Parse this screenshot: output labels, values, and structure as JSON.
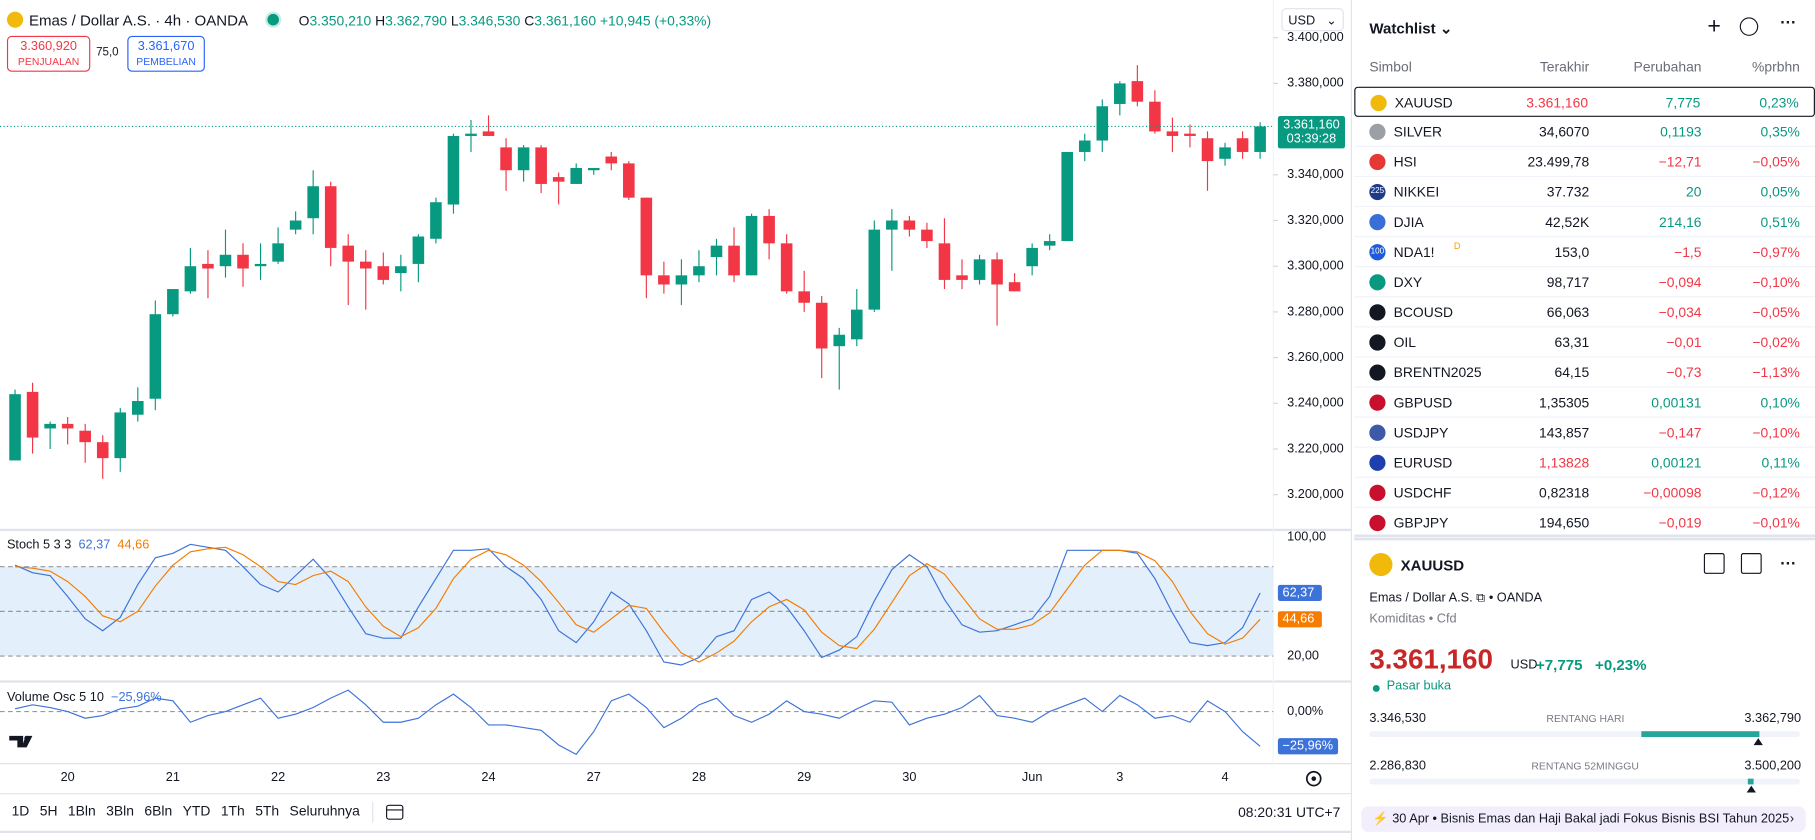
{
  "header": {
    "symbol_title": "Emas / Dollar A.S. · 4h · OANDA",
    "o_label": "O",
    "o": "3.350,210",
    "h_label": "H",
    "h": "3.362,790",
    "l_label": "L",
    "l": "3.346,530",
    "c_label": "C",
    "c": "3.361,160",
    "change": "+10,945 (+0,33%)"
  },
  "trade": {
    "sell": "3.360,920",
    "sell_label": "PENJUALAN",
    "spread": "75,0",
    "buy": "3.361,670",
    "buy_label": "PEMBELIAN",
    "currency": "USD"
  },
  "chart_data": [
    {
      "type": "candlestick",
      "up_color": "#089981",
      "down_color": "#f23645",
      "open": [
        3215,
        3245,
        3229,
        3231,
        3228,
        3223,
        3216,
        3235,
        3242,
        3279,
        3289,
        3301,
        3300,
        3305,
        3300,
        3302,
        3316,
        3321,
        3335,
        3309,
        3302,
        3300,
        3297,
        3301,
        3312,
        3327,
        3357,
        3359,
        3352,
        3342,
        3352,
        3339,
        3336,
        3342,
        3348,
        3345,
        3330,
        3296,
        3292,
        3296,
        3304,
        3309,
        3296,
        3322,
        3310,
        3289,
        3284,
        3265,
        3268,
        3281,
        3316,
        3320,
        3316,
        3310,
        3296,
        3294,
        3303,
        3293,
        3300,
        3309,
        3311,
        3350,
        3355,
        3371,
        3381,
        3372,
        3359,
        3358,
        3356,
        3347,
        3356,
        3350
      ],
      "high": [
        3246,
        3249,
        3232,
        3234,
        3231,
        3226,
        3238,
        3247,
        3285,
        3290,
        3308,
        3307,
        3316,
        3310,
        3310,
        3317,
        3324,
        3342,
        3337,
        3314,
        3307,
        3306,
        3305,
        3314,
        3330,
        3358,
        3364,
        3366,
        3356,
        3353,
        3353,
        3341,
        3345,
        3343,
        3350,
        3346,
        3330,
        3302,
        3303,
        3307,
        3312,
        3317,
        3323,
        3325,
        3314,
        3298,
        3287,
        3273,
        3290,
        3320,
        3325,
        3322,
        3319,
        3321,
        3303,
        3305,
        3306,
        3297,
        3310,
        3314,
        3350,
        3358,
        3373,
        3381,
        3388,
        3377,
        3365,
        3362,
        3359,
        3354,
        3359,
        3363
      ],
      "low": [
        3215,
        3218,
        3220,
        3222,
        3214,
        3207,
        3210,
        3232,
        3237,
        3278,
        3288,
        3286,
        3295,
        3291,
        3294,
        3301,
        3314,
        3314,
        3300,
        3283,
        3281,
        3292,
        3289,
        3293,
        3310,
        3323,
        3350,
        3357,
        3333,
        3337,
        3332,
        3327,
        3336,
        3340,
        3342,
        3329,
        3286,
        3288,
        3283,
        3293,
        3296,
        3293,
        3296,
        3303,
        3288,
        3280,
        3251,
        3246,
        3265,
        3280,
        3298,
        3313,
        3308,
        3290,
        3290,
        3292,
        3274,
        3289,
        3296,
        3307,
        3311,
        3346,
        3350,
        3366,
        3370,
        3358,
        3350,
        3352,
        3333,
        3344,
        3347,
        3347
      ],
      "close": [
        3244,
        3225,
        3231,
        3229,
        3223,
        3216,
        3236,
        3241,
        3279,
        3290,
        3300,
        3299,
        3305,
        3299,
        3301,
        3310,
        3320,
        3335,
        3308,
        3302,
        3299,
        3294,
        3300,
        3313,
        3328,
        3357,
        3358,
        3357,
        3342,
        3352,
        3336,
        3337,
        3343,
        3343,
        3345,
        3330,
        3296,
        3292,
        3296,
        3300,
        3309,
        3296,
        3322,
        3310,
        3289,
        3284,
        3264,
        3270,
        3281,
        3316,
        3320,
        3316,
        3311,
        3294,
        3294,
        3303,
        3292,
        3289,
        3308,
        3311,
        3350,
        3355,
        3370,
        3380,
        3372,
        3359,
        3357,
        3357,
        3346,
        3352,
        3350,
        3361.16
      ],
      "last_price_label": "3.361,160",
      "countdown": "03:39:28",
      "ylim": [
        3185.1,
        3416.5
      ],
      "yticks": [
        {
          "value": 3200,
          "label": "3.200,000"
        },
        {
          "value": 3220,
          "label": "3.220,000"
        },
        {
          "value": 3240,
          "label": "3.240,000"
        },
        {
          "value": 3260,
          "label": "3.260,000"
        },
        {
          "value": 3280,
          "label": "3.280,000"
        },
        {
          "value": 3300,
          "label": "3.300,000"
        },
        {
          "value": 3320,
          "label": "3.320,000"
        },
        {
          "value": 3340,
          "label": "3.340,000"
        },
        {
          "value": 3380,
          "label": "3.380,000"
        },
        {
          "value": 3400,
          "label": "3.400,000"
        }
      ],
      "xticks": [
        {
          "value": 3,
          "label": "20"
        },
        {
          "value": 9,
          "label": "21"
        },
        {
          "value": 15,
          "label": "22"
        },
        {
          "value": 21,
          "label": "23"
        },
        {
          "value": 27,
          "label": "24"
        },
        {
          "value": 33,
          "label": "27"
        },
        {
          "value": 39,
          "label": "28"
        },
        {
          "value": 45,
          "label": "29"
        },
        {
          "value": 51,
          "label": "30"
        },
        {
          "value": 58,
          "label": "Jun"
        },
        {
          "value": 63,
          "label": "3"
        },
        {
          "value": 69,
          "label": "4"
        }
      ]
    },
    {
      "type": "line",
      "title": "Stoch 5 3 3",
      "ylim": [
        3.7,
        104.7
      ],
      "yticks": [
        {
          "value": 100,
          "label": "100,00"
        },
        {
          "value": 20,
          "label": "20,00"
        }
      ],
      "levels": [
        80,
        50,
        20
      ],
      "band_color": "#e3f0fb",
      "series": [
        {
          "color": "#3d73d9",
          "last_label": "62,37",
          "values": [
            81,
            76,
            74,
            60,
            45,
            37,
            46,
            68,
            86,
            89,
            95,
            93,
            91,
            80,
            68,
            63,
            74,
            85,
            72,
            53,
            35,
            32,
            32,
            53,
            72,
            91,
            91,
            92,
            80,
            72,
            58,
            37,
            29,
            43,
            63,
            55,
            37,
            16,
            14,
            19,
            33,
            37,
            58,
            63,
            53,
            37,
            19,
            24,
            33,
            57,
            78,
            88,
            80,
            58,
            41,
            36,
            37,
            41,
            45,
            60,
            91,
            91,
            91,
            91,
            89,
            72,
            49,
            29,
            27,
            29,
            39,
            62.37
          ]
        },
        {
          "color": "#f57c00",
          "last_label": "44,66",
          "values": [
            80,
            79,
            77,
            70,
            60,
            47,
            43,
            50,
            67,
            81,
            90,
            92,
            93,
            88,
            80,
            70,
            68,
            74,
            77,
            70,
            53,
            40,
            33,
            39,
            52,
            72,
            85,
            91,
            88,
            81,
            70,
            56,
            41,
            36,
            45,
            54,
            52,
            36,
            22,
            16,
            22,
            30,
            43,
            53,
            58,
            51,
            36,
            27,
            25,
            38,
            56,
            74,
            82,
            75,
            60,
            45,
            38,
            38,
            41,
            49,
            65,
            81,
            91,
            91,
            90,
            84,
            70,
            50,
            35,
            28,
            32,
            44.66
          ]
        }
      ]
    },
    {
      "type": "line",
      "title": "Volume Osc 5 10",
      "ylim": [
        -37.2,
        21.6
      ],
      "yticks": [
        {
          "value": 0,
          "label": "0,00%"
        }
      ],
      "series": [
        {
          "color": "#3d73d9",
          "last_label": "−25,96%",
          "values": [
            2,
            5,
            3,
            0,
            -5,
            -3,
            2,
            4,
            10,
            8,
            -8,
            -3,
            0,
            5,
            10,
            -5,
            -2,
            3,
            10,
            16,
            5,
            -8,
            -8,
            -5,
            5,
            13,
            3,
            -10,
            -10,
            -12,
            -14,
            -25,
            -32,
            -15,
            8,
            13,
            3,
            -12,
            -5,
            5,
            10,
            -3,
            -8,
            -2,
            8,
            0,
            -2,
            -5,
            2,
            8,
            7,
            -10,
            -5,
            -2,
            3,
            12,
            -3,
            -5,
            -8,
            0,
            5,
            10,
            0,
            12,
            5,
            -5,
            -3,
            -8,
            8,
            0,
            -15,
            -25.96
          ]
        }
      ]
    }
  ],
  "toolbar": {
    "ranges": [
      "1D",
      "5H",
      "1Bln",
      "3Bln",
      "6Bln",
      "YTD",
      "1Th",
      "5Th",
      "Seluruhnya"
    ],
    "clock": "08:20:31 UTC+7"
  },
  "watchlist": {
    "title": "Watchlist",
    "columns": [
      "Simbol",
      "Terakhir",
      "Perubahan",
      "%prbhn"
    ],
    "rows": [
      {
        "symbol": "XAUUSD",
        "last": "3.361,160",
        "change": "7,775",
        "pct": "0,23%",
        "icon_color": "#f0b90b",
        "last_color": "#f23645",
        "color": "#089981"
      },
      {
        "symbol": "SILVER",
        "last": "34,6070",
        "change": "0,1193",
        "pct": "0,35%",
        "icon_color": "#9aa0a6",
        "last_color": "#131722",
        "color": "#089981"
      },
      {
        "symbol": "HSI",
        "last": "23.499,78",
        "change": "−12,71",
        "pct": "−0,05%",
        "icon_color": "#e53935",
        "last_color": "#131722",
        "color": "#f23645"
      },
      {
        "symbol": "NIKKEI",
        "last": "37.732",
        "change": "20",
        "pct": "0,05%",
        "icon_color": "#1e3a8a",
        "icon_text": "225",
        "last_color": "#131722",
        "color": "#089981"
      },
      {
        "symbol": "DJIA",
        "last": "42,52K",
        "change": "214,16",
        "pct": "0,51%",
        "icon_color": "#3b6fd8",
        "last_color": "#131722",
        "color": "#089981"
      },
      {
        "symbol": "NDA1!",
        "badge": "D",
        "last": "153,0",
        "change": "−1,5",
        "pct": "−0,97%",
        "icon_color": "#1e5bd8",
        "icon_text": "100",
        "last_color": "#131722",
        "color": "#f23645"
      },
      {
        "symbol": "DXY",
        "last": "98,717",
        "change": "−0,094",
        "pct": "−0,10%",
        "icon_color": "#089981",
        "last_color": "#131722",
        "color": "#f23645"
      },
      {
        "symbol": "BCOUSD",
        "last": "66,063",
        "change": "−0,034",
        "pct": "−0,05%",
        "icon_color": "#131722",
        "last_color": "#131722",
        "color": "#f23645"
      },
      {
        "symbol": "OIL",
        "last": "63,31",
        "change": "−0,01",
        "pct": "−0,02%",
        "icon_color": "#131722",
        "last_color": "#131722",
        "color": "#f23645"
      },
      {
        "symbol": "BRENTN2025",
        "last": "64,15",
        "change": "−0,73",
        "pct": "−1,13%",
        "icon_color": "#131722",
        "last_color": "#131722",
        "color": "#f23645"
      },
      {
        "symbol": "GBPUSD",
        "last": "1,35305",
        "change": "0,00131",
        "pct": "0,10%",
        "icon_color": "#c8102e",
        "last_color": "#131722",
        "color": "#089981"
      },
      {
        "symbol": "USDJPY",
        "last": "143,857",
        "change": "−0,147",
        "pct": "−0,10%",
        "icon_color": "#3c5aa6",
        "last_color": "#131722",
        "color": "#f23645"
      },
      {
        "symbol": "EURUSD",
        "last": "1,13828",
        "change": "0,00121",
        "pct": "0,11%",
        "icon_color": "#1e40af",
        "last_color": "#f23645",
        "color": "#089981"
      },
      {
        "symbol": "USDCHF",
        "last": "0,82318",
        "change": "−0,00098",
        "pct": "−0,12%",
        "icon_color": "#c8102e",
        "last_color": "#131722",
        "color": "#f23645"
      },
      {
        "symbol": "GBPJPY",
        "last": "194,650",
        "change": "−0,019",
        "pct": "−0,01%",
        "icon_color": "#c8102e",
        "last_color": "#131722",
        "color": "#f23645"
      }
    ]
  },
  "detail": {
    "symbol": "XAUUSD",
    "name": "Emas / Dollar A.S.",
    "exchange": "OANDA",
    "category": "Komiditas • Cfd",
    "price": "3.361,160",
    "currency": "USD",
    "change": "+7,775",
    "pct": "+0,23%",
    "status": "Pasar buka",
    "day_low": "3.346,530",
    "day_label": "RENTANG HARI",
    "day_high": "3.362,790",
    "year_low": "2.286,830",
    "year_label": "RENTANG 52MINGGU",
    "year_high": "3.500,200",
    "news": "30 Apr • Bisnis Emas dan Haji Bakal jadi Fokus Bisnis BSI Tahun 2025"
  }
}
